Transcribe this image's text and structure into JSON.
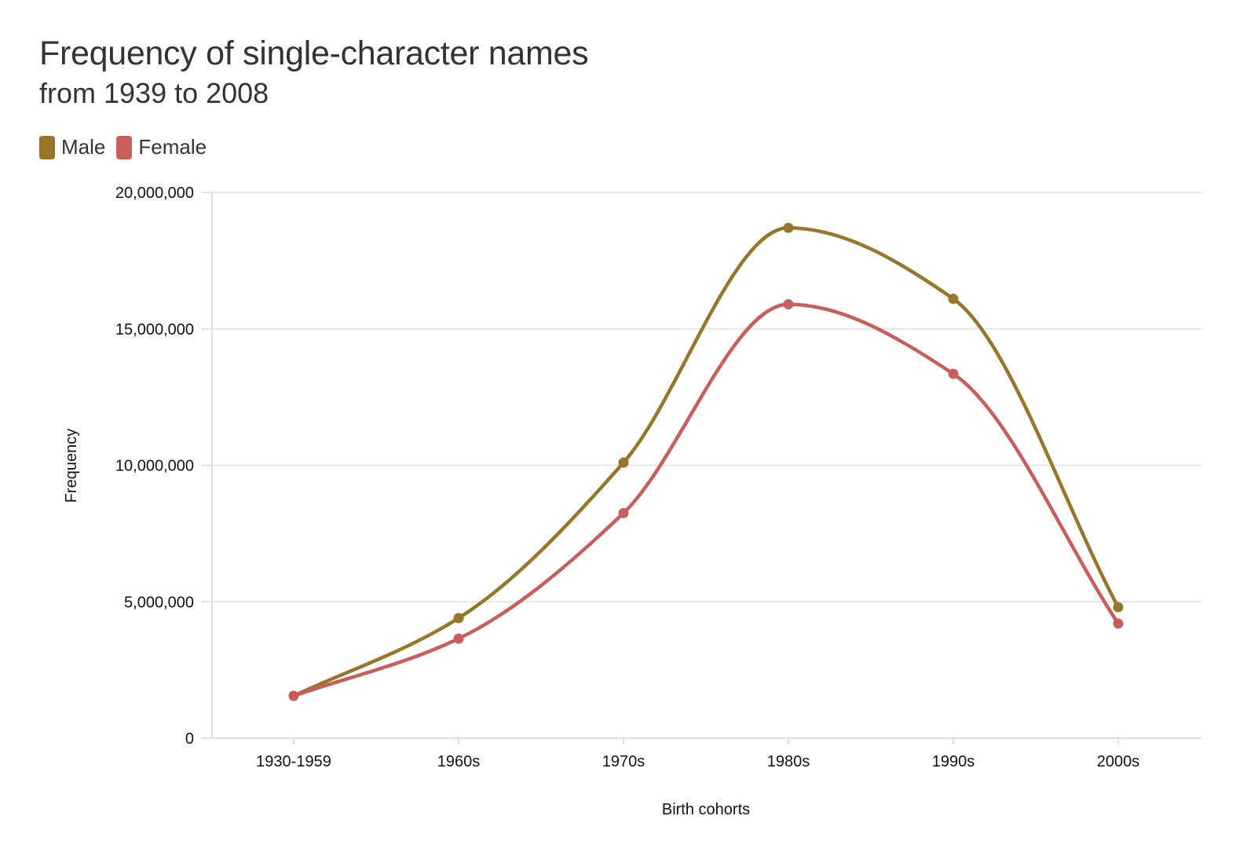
{
  "chart_data": {
    "type": "line",
    "title": "Frequency of single-character names",
    "subtitle": "from 1939 to 2008",
    "xlabel": "Birth cohorts",
    "ylabel": "Frequency",
    "categories": [
      "1930-1959",
      "1960s",
      "1970s",
      "1980s",
      "1990s",
      "2000s"
    ],
    "ylim": [
      0,
      20000000
    ],
    "yticks": [
      0,
      5000000,
      10000000,
      15000000,
      20000000
    ],
    "ytick_labels": [
      "0",
      "5,000,000",
      "10,000,000",
      "15,000,000",
      "20,000,000"
    ],
    "grid": true,
    "legend_position": "top-left",
    "series": [
      {
        "name": "Male",
        "color": "#97762A",
        "values": [
          1550000,
          4400000,
          10100000,
          18700000,
          16100000,
          4800000
        ]
      },
      {
        "name": "Female",
        "color": "#C95D5B",
        "values": [
          1550000,
          3650000,
          8250000,
          15900000,
          13350000,
          4200000
        ]
      }
    ]
  }
}
